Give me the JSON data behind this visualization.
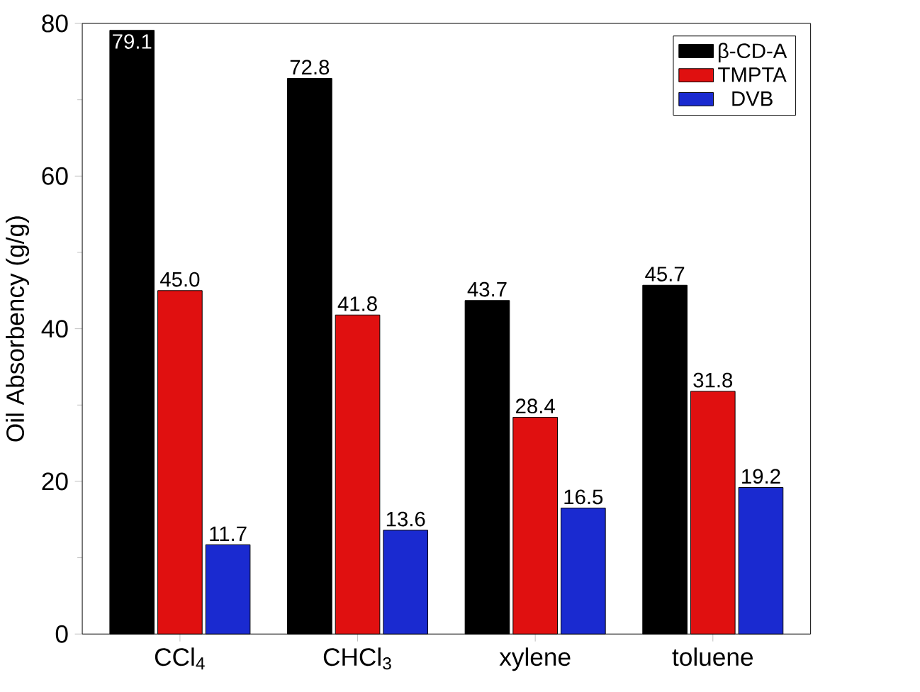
{
  "chart_data": {
    "type": "bar",
    "ylabel": "Oil Absorbency (g/g)",
    "categories": [
      "CCl$_{4}$",
      "CHCl$_{3}$",
      "xylene",
      "toluene"
    ],
    "series": [
      {
        "name": "β-CD-A",
        "color": "#000000",
        "values": [
          79.1,
          72.8,
          43.7,
          45.7
        ],
        "value_labels": [
          "79.1",
          "72.8",
          "43.7",
          "45.7"
        ]
      },
      {
        "name": "TMPTA",
        "color": "#e01010",
        "values": [
          45.0,
          41.8,
          28.4,
          31.8
        ],
        "value_labels": [
          "45.0",
          "41.8",
          "28.4",
          "31.8"
        ]
      },
      {
        "name": "DVB",
        "color": "#1a2ad0",
        "values": [
          11.7,
          13.6,
          16.5,
          19.2
        ],
        "value_labels": [
          "11.7",
          "13.6",
          "16.5",
          "19.2"
        ]
      }
    ],
    "ylim": [
      0,
      80
    ],
    "yticks": [
      0,
      20,
      40,
      60,
      80
    ],
    "legend": "top right",
    "grid": false
  }
}
